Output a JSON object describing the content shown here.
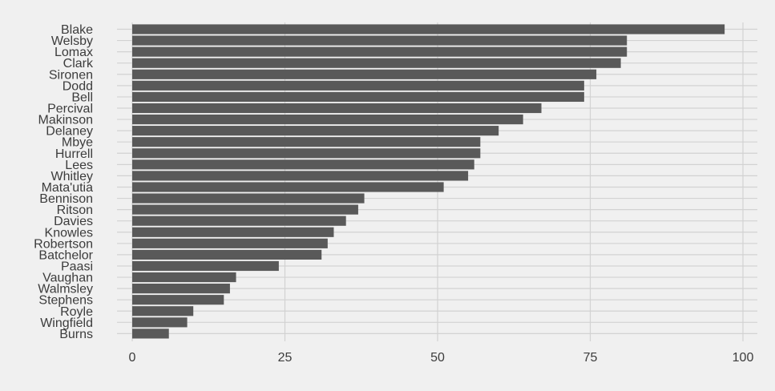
{
  "chart_data": {
    "type": "bar",
    "orientation": "horizontal",
    "title": "",
    "xlabel": "",
    "ylabel": "",
    "categories": [
      "Blake",
      "Welsby",
      "Lomax",
      "Clark",
      "Sironen",
      "Dodd",
      "Bell",
      "Percival",
      "Makinson",
      "Delaney",
      "Mbye",
      "Hurrell",
      "Lees",
      "Whitley",
      "Mata'utia",
      "Bennison",
      "Ritson",
      "Davies",
      "Knowles",
      "Robertson",
      "Batchelor",
      "Paasi",
      "Vaughan",
      "Walmsley",
      "Stephens",
      "Royle",
      "Wingfield",
      "Burns"
    ],
    "values": [
      97,
      81,
      81,
      80,
      76,
      74,
      74,
      67,
      64,
      60,
      57,
      57,
      56,
      55,
      51,
      38,
      37,
      35,
      33,
      32,
      31,
      24,
      17,
      16,
      15,
      10,
      9,
      6
    ],
    "xlim": [
      0,
      100
    ],
    "xticks": [
      0,
      25,
      50,
      75,
      100
    ],
    "grid": true,
    "legend": "none",
    "colors": {
      "background": "#f0f0f0",
      "bar": "#595959",
      "grid": "#d2d2d2",
      "text": "#3c3c3c"
    }
  }
}
